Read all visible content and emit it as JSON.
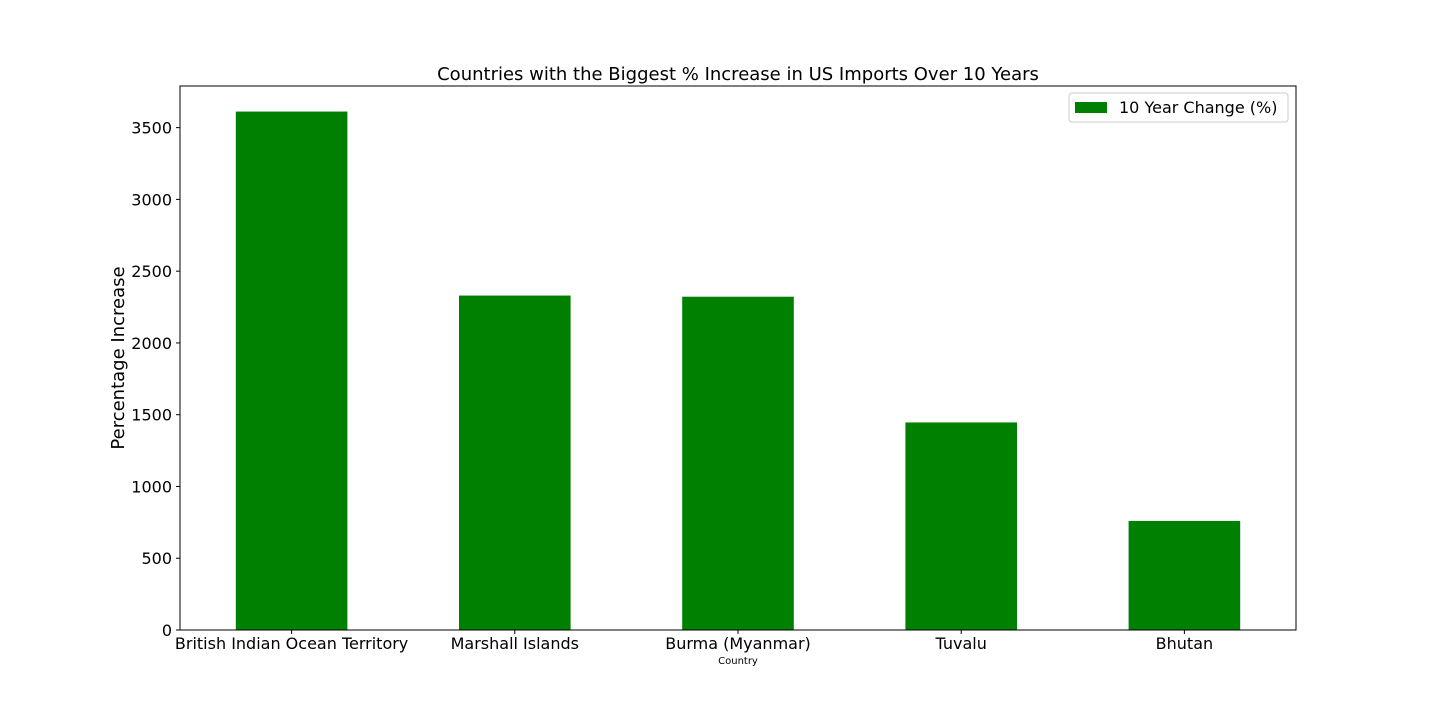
{
  "chart_data": {
    "type": "bar",
    "title": "Countries with the Biggest % Increase in US Imports Over 10 Years",
    "xlabel": "Country",
    "ylabel": "Percentage Increase",
    "categories": [
      "British Indian Ocean Territory",
      "Marshall Islands",
      "Burma (Myanmar)",
      "Tuvalu",
      "Bhutan"
    ],
    "series": [
      {
        "name": "10 Year Change (%)",
        "values": [
          3612,
          2330,
          2322,
          1446,
          760
        ],
        "color": "#008000"
      }
    ],
    "ylim": [
      0,
      3790
    ],
    "yticks": [
      0,
      500,
      1000,
      1500,
      2000,
      2500,
      3000,
      3500
    ],
    "grid": false,
    "legend_position": "top-right"
  }
}
